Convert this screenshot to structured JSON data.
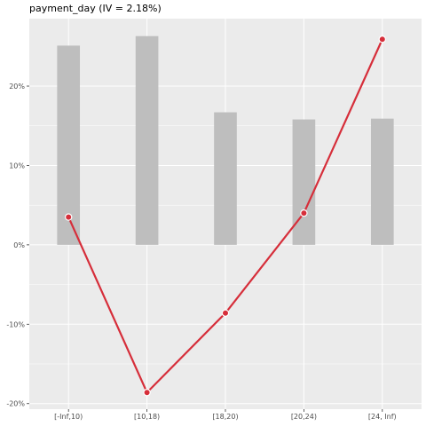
{
  "chart_data": {
    "type": "bar",
    "title": "payment_day (IV = 2.18%)",
    "xlabel": "",
    "ylabel": "",
    "categories": [
      "[-Inf,10)",
      "[10,18)",
      "[18,20)",
      "[20,24)",
      "[24, Inf)"
    ],
    "series": [
      {
        "type": "bar",
        "values": [
          0.251,
          0.263,
          0.167,
          0.158,
          0.159
        ]
      },
      {
        "type": "line",
        "values": [
          0.035,
          -0.186,
          -0.086,
          0.04,
          0.259
        ]
      }
    ],
    "ylim": [
      -0.207,
      0.285
    ],
    "yticks": [
      -0.2,
      -0.1,
      0.0,
      0.1,
      0.2
    ],
    "ytick_labels": [
      "-20%",
      "-10%",
      "0%",
      "10%",
      "20%"
    ],
    "grid": true,
    "legend": "none",
    "colors": {
      "panel_bg": "#ebebeb",
      "grid": "#ffffff",
      "bar": "#bebebe",
      "line": "#d62e3a",
      "point_outline": "#ffffff"
    }
  }
}
